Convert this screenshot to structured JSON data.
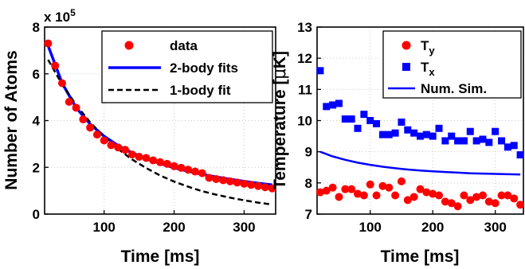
{
  "chart_data": [
    {
      "type": "scatter",
      "xlabel": "Time [ms]",
      "ylabel": "Number of Atoms",
      "multiplier_label": "x 10",
      "multiplier_exponent": "5",
      "xlim": [
        15,
        345
      ],
      "ylim": [
        0,
        8
      ],
      "xticks": [
        "100",
        "200",
        "300"
      ],
      "xtick_values": [
        100,
        200,
        300
      ],
      "yticks": [
        "0",
        "2",
        "4",
        "6",
        "8"
      ],
      "ytick_values": [
        0,
        2,
        4,
        6,
        8
      ],
      "grid": true,
      "legend_position": "top-right",
      "series": [
        {
          "name": "data",
          "kind": "markers",
          "marker": "circle",
          "color": "#ff0000",
          "x": [
            20,
            30,
            40,
            50,
            60,
            70,
            80,
            90,
            100,
            110,
            120,
            130,
            140,
            150,
            160,
            170,
            180,
            190,
            200,
            210,
            220,
            230,
            240,
            250,
            260,
            270,
            280,
            290,
            300,
            310,
            320,
            330,
            340
          ],
          "y": [
            7.3,
            6.35,
            5.6,
            4.8,
            4.55,
            4.05,
            3.7,
            3.4,
            3.15,
            2.95,
            2.85,
            2.75,
            2.55,
            2.45,
            2.4,
            2.3,
            2.22,
            2.15,
            2.05,
            1.98,
            1.9,
            1.82,
            1.75,
            1.55,
            1.5,
            1.45,
            1.4,
            1.35,
            1.3,
            1.25,
            1.2,
            1.15,
            1.1
          ]
        },
        {
          "name": "2-body fits",
          "kind": "line",
          "dash": "solid",
          "color": "#0000ff",
          "x": [
            20,
            40,
            60,
            80,
            100,
            120,
            140,
            160,
            180,
            200,
            220,
            240,
            260,
            280,
            300,
            320,
            340
          ],
          "y": [
            7.2,
            5.6,
            4.55,
            3.85,
            3.33,
            2.93,
            2.62,
            2.37,
            2.16,
            1.98,
            1.83,
            1.7,
            1.59,
            1.49,
            1.4,
            1.32,
            1.25
          ]
        },
        {
          "name": "1-body fit",
          "kind": "line",
          "dash": "dashed",
          "color": "#000000",
          "x": [
            20,
            40,
            60,
            80,
            100,
            120,
            140,
            160,
            180,
            200,
            220,
            240,
            260,
            280,
            300,
            320,
            340
          ],
          "y": [
            6.6,
            5.55,
            4.67,
            3.93,
            3.3,
            2.78,
            2.34,
            1.97,
            1.65,
            1.39,
            1.17,
            0.98,
            0.83,
            0.7,
            0.59,
            0.49,
            0.41
          ]
        }
      ]
    },
    {
      "type": "scatter",
      "xlabel": "Time [ms]",
      "ylabel": "Temperature [",
      "ylabel_mu": "μ",
      "ylabel_end": "K]",
      "xlim": [
        15,
        345
      ],
      "ylim": [
        7,
        13
      ],
      "xticks": [
        "100",
        "200",
        "300"
      ],
      "xtick_values": [
        100,
        200,
        300
      ],
      "yticks": [
        "7",
        "8",
        "9",
        "10",
        "11",
        "12",
        "13"
      ],
      "ytick_values": [
        7,
        8,
        9,
        10,
        11,
        12,
        13
      ],
      "grid": true,
      "legend_position": "top-right",
      "series": [
        {
          "name": "T",
          "subscript": "y",
          "kind": "markers",
          "marker": "circle",
          "color": "#ff0000",
          "x": [
            20,
            30,
            40,
            50,
            60,
            70,
            80,
            90,
            100,
            110,
            120,
            130,
            140,
            150,
            160,
            170,
            180,
            190,
            200,
            210,
            220,
            230,
            240,
            250,
            260,
            270,
            280,
            290,
            300,
            310,
            320,
            330,
            340
          ],
          "y": [
            7.7,
            7.75,
            7.85,
            7.55,
            7.8,
            7.8,
            7.65,
            7.6,
            7.95,
            7.6,
            7.9,
            7.85,
            7.6,
            8.05,
            7.45,
            7.55,
            7.8,
            7.7,
            7.65,
            7.6,
            7.4,
            7.35,
            7.25,
            7.6,
            7.45,
            7.55,
            7.6,
            7.4,
            7.35,
            7.6,
            7.6,
            7.5,
            7.3
          ]
        },
        {
          "name": "T",
          "subscript": "x",
          "kind": "markers",
          "marker": "square",
          "color": "#0000ff",
          "x": [
            20,
            30,
            40,
            50,
            60,
            70,
            80,
            90,
            100,
            110,
            120,
            130,
            140,
            150,
            160,
            170,
            180,
            190,
            200,
            210,
            220,
            230,
            240,
            250,
            260,
            270,
            280,
            290,
            300,
            310,
            320,
            330,
            340
          ],
          "y": [
            11.6,
            10.45,
            10.5,
            10.55,
            10.05,
            10.05,
            9.75,
            10.2,
            10.0,
            9.9,
            9.55,
            9.55,
            9.6,
            9.95,
            9.7,
            9.6,
            9.5,
            9.55,
            9.5,
            9.75,
            9.35,
            9.5,
            9.35,
            9.35,
            9.65,
            9.35,
            9.4,
            9.3,
            9.65,
            9.35,
            9.15,
            9.2,
            8.9
          ]
        },
        {
          "name": "Num. Sim.",
          "kind": "line",
          "dash": "solid",
          "color": "#0000ff",
          "x": [
            20,
            40,
            60,
            80,
            100,
            120,
            140,
            160,
            180,
            200,
            220,
            240,
            260,
            280,
            300,
            320,
            340
          ],
          "y": [
            9.0,
            8.85,
            8.74,
            8.65,
            8.58,
            8.52,
            8.47,
            8.43,
            8.4,
            8.37,
            8.35,
            8.33,
            8.31,
            8.3,
            8.29,
            8.28,
            8.27
          ]
        }
      ]
    }
  ]
}
